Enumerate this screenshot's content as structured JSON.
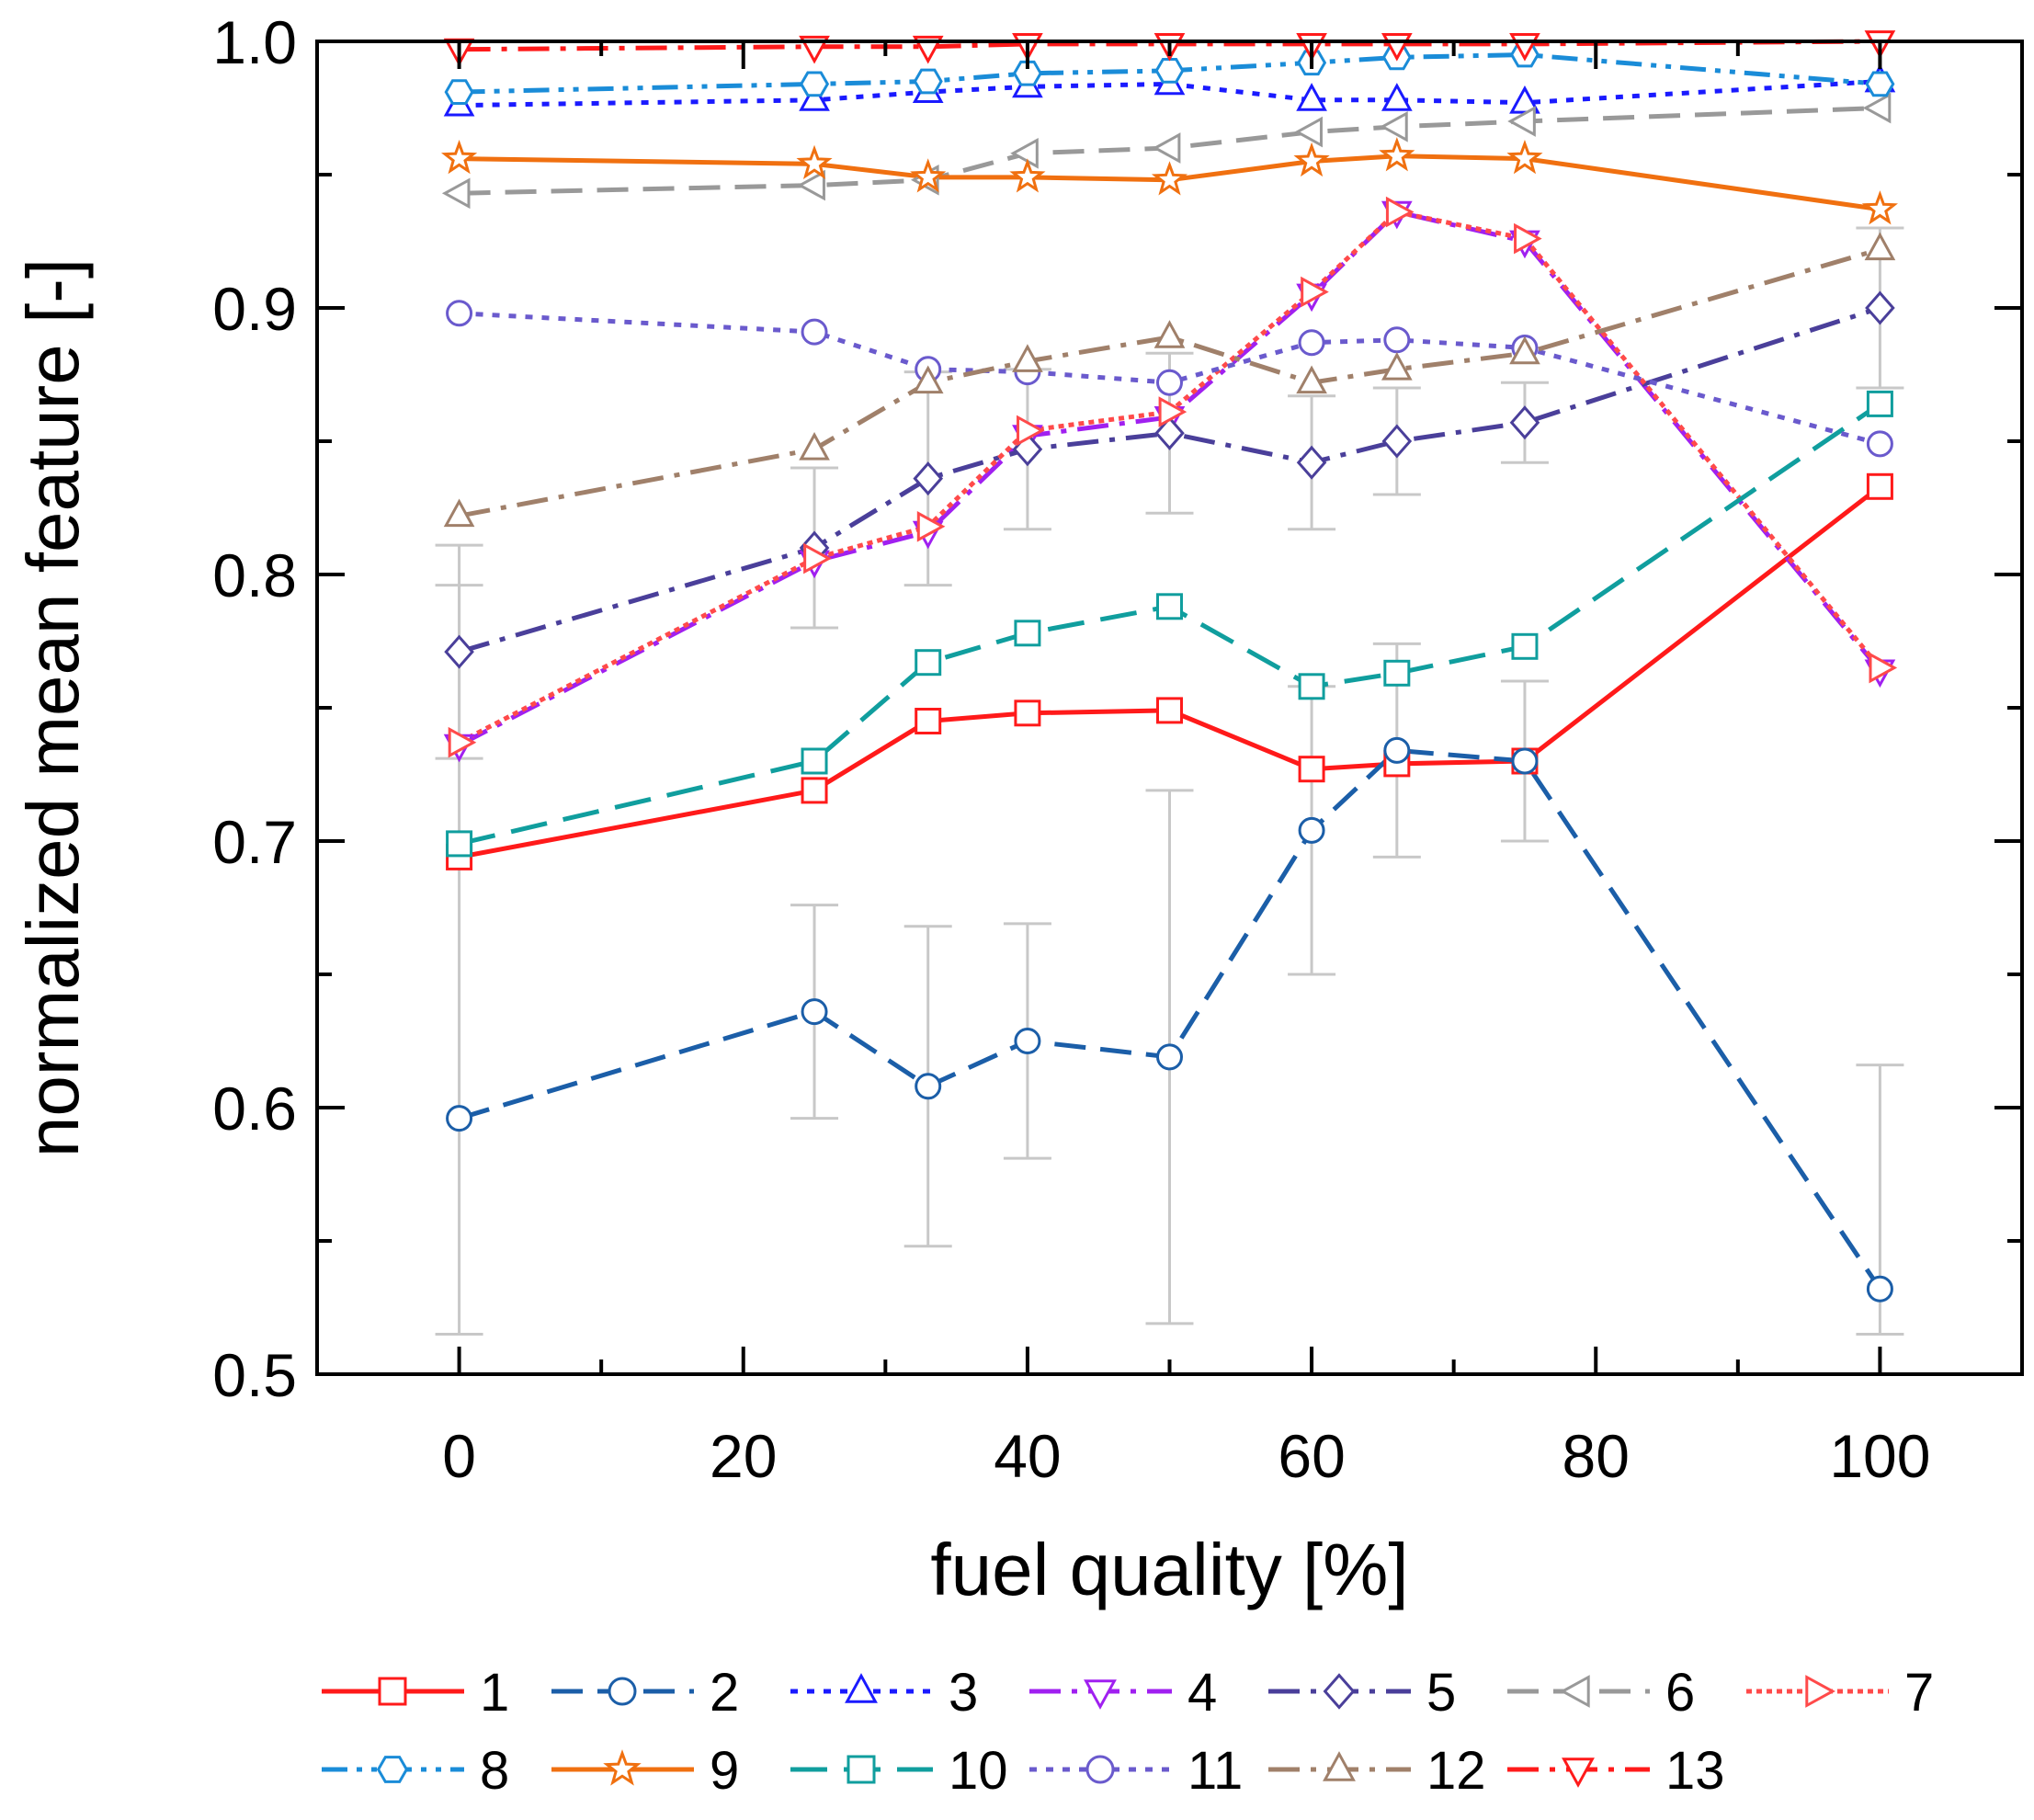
{
  "chart_data": {
    "type": "line",
    "xlabel": "fuel quality [%]",
    "ylabel": "normalized mean feature [-]",
    "xlim": [
      -10,
      110
    ],
    "ylim": [
      0.5,
      1.0
    ],
    "xticks": [
      "0",
      "20",
      "40",
      "60",
      "80",
      "100"
    ],
    "yticks": [
      "0.5",
      "0.6",
      "0.7",
      "0.8",
      "0.9",
      "1.0"
    ],
    "grid": false,
    "legend_position": "bottom",
    "x": [
      0,
      25,
      33,
      40,
      50,
      60,
      66,
      75,
      100
    ],
    "series": [
      {
        "name": "1",
        "color": "#ff1a1a",
        "dash": "solid",
        "marker": "square",
        "values": [
          0.694,
          0.719,
          0.745,
          0.748,
          0.749,
          0.727,
          0.729,
          0.73,
          0.833
        ]
      },
      {
        "name": "2",
        "color": "#1b5ea8",
        "dash": "dashed",
        "marker": "circle",
        "values": [
          0.596,
          0.636,
          0.608,
          0.625,
          0.619,
          0.704,
          0.734,
          0.73,
          0.532
        ],
        "err": [
          0.2,
          0.04,
          0.06,
          0.044,
          0.1,
          0.054,
          0.04,
          0.03,
          0.084
        ]
      },
      {
        "name": "3",
        "color": "#1a1aff",
        "dash": "dotted",
        "marker": "triangle-up",
        "values": [
          0.976,
          0.978,
          0.981,
          0.983,
          0.984,
          0.978,
          0.978,
          0.977,
          0.985
        ]
      },
      {
        "name": "4",
        "color": "#a020f0",
        "dash": "dashdot",
        "marker": "triangle-down",
        "values": [
          0.736,
          0.805,
          0.816,
          0.852,
          0.859,
          0.905,
          0.936,
          0.925,
          0.764
        ]
      },
      {
        "name": "5",
        "color": "#4a3f9a",
        "dash": "dashdot",
        "marker": "diamond",
        "values": [
          0.771,
          0.81,
          0.836,
          0.847,
          0.853,
          0.842,
          0.85,
          0.857,
          0.9
        ],
        "err": [
          0.04,
          0.03,
          0.04,
          0.03,
          0.03,
          0.025,
          0.02,
          0.015,
          0.03
        ]
      },
      {
        "name": "6",
        "color": "#999999",
        "dash": "dashed",
        "marker": "triangle-left",
        "values": [
          0.943,
          0.946,
          0.948,
          0.958,
          0.96,
          0.966,
          0.968,
          0.97,
          0.975
        ]
      },
      {
        "name": "7",
        "color": "#ff4a4a",
        "dash": "densedotted",
        "marker": "triangle-right",
        "values": [
          0.737,
          0.806,
          0.818,
          0.854,
          0.861,
          0.906,
          0.936,
          0.926,
          0.765
        ]
      },
      {
        "name": "8",
        "color": "#1a8cd8",
        "dash": "dashdotdot",
        "marker": "hexagon",
        "values": [
          0.981,
          0.984,
          0.985,
          0.988,
          0.989,
          0.992,
          0.994,
          0.995,
          0.984
        ]
      },
      {
        "name": "9",
        "color": "#f07010",
        "dash": "solid",
        "marker": "star",
        "values": [
          0.956,
          0.954,
          0.949,
          0.949,
          0.948,
          0.955,
          0.957,
          0.956,
          0.937
        ]
      },
      {
        "name": "10",
        "color": "#109e9e",
        "dash": "longdash",
        "marker": "square",
        "values": [
          0.699,
          0.73,
          0.767,
          0.778,
          0.788,
          0.758,
          0.763,
          0.773,
          0.864
        ]
      },
      {
        "name": "11",
        "color": "#6a5acd",
        "dash": "dotted",
        "marker": "circle",
        "values": [
          0.898,
          0.891,
          0.877,
          0.876,
          0.872,
          0.887,
          0.888,
          0.885,
          0.849
        ]
      },
      {
        "name": "12",
        "color": "#a0806a",
        "dash": "dashdot",
        "marker": "triangle-up",
        "values": [
          0.822,
          0.847,
          0.872,
          0.88,
          0.889,
          0.872,
          0.877,
          0.883,
          0.922
        ]
      },
      {
        "name": "13",
        "color": "#ff1a1a",
        "dash": "dashdot",
        "marker": "triangle-down",
        "values": [
          0.997,
          0.998,
          0.998,
          0.999,
          0.999,
          0.999,
          0.999,
          0.999,
          1.0
        ]
      }
    ]
  }
}
